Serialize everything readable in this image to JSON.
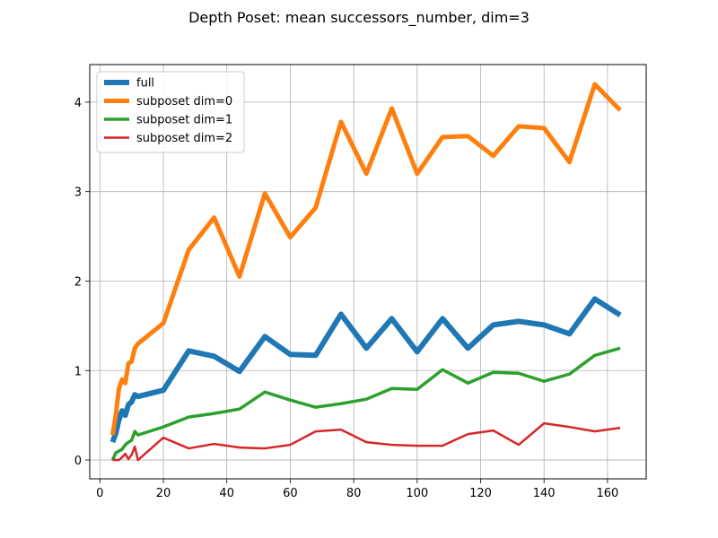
{
  "chart_data": {
    "type": "line",
    "title": "Depth Poset: mean successors_number, dim=3",
    "xlabel": "",
    "ylabel": "",
    "xlim": [
      -3.2,
      172.2
    ],
    "ylim": [
      -0.21,
      4.42
    ],
    "xticks": [
      0,
      20,
      40,
      60,
      80,
      100,
      120,
      140,
      160
    ],
    "yticks": [
      0,
      1,
      2,
      3,
      4
    ],
    "grid": true,
    "legend_position": "top-left",
    "series": [
      {
        "name": "full",
        "color": "#1f77b4",
        "linewidth": 6,
        "x": [
          4,
          5,
          6,
          7,
          8,
          9,
          10,
          11,
          12,
          20,
          28,
          36,
          44,
          52,
          60,
          68,
          76,
          84,
          92,
          100,
          108,
          116,
          124,
          132,
          140,
          148,
          156,
          164
        ],
        "y": [
          0.2,
          0.3,
          0.45,
          0.55,
          0.5,
          0.62,
          0.65,
          0.73,
          0.71,
          0.78,
          1.22,
          1.16,
          0.99,
          1.38,
          1.18,
          1.17,
          1.63,
          1.25,
          1.58,
          1.21,
          1.58,
          1.25,
          1.51,
          1.55,
          1.51,
          1.41,
          1.8,
          1.62
        ]
      },
      {
        "name": "subposet dim=0",
        "color": "#ff7f0e",
        "linewidth": 5,
        "x": [
          4,
          5,
          6,
          7,
          8,
          9,
          10,
          11,
          12,
          20,
          28,
          36,
          44,
          52,
          60,
          68,
          76,
          84,
          92,
          100,
          108,
          116,
          124,
          132,
          140,
          148,
          156,
          164
        ],
        "y": [
          0.28,
          0.5,
          0.8,
          0.9,
          0.86,
          1.08,
          1.1,
          1.25,
          1.3,
          1.53,
          2.35,
          2.71,
          2.05,
          2.98,
          2.49,
          2.82,
          3.78,
          3.2,
          3.93,
          3.2,
          3.61,
          3.62,
          3.4,
          3.73,
          3.71,
          3.33,
          4.2,
          3.91
        ]
      },
      {
        "name": "subposet dim=1",
        "color": "#2ca02c",
        "linewidth": 3.5,
        "x": [
          4,
          5,
          6,
          7,
          8,
          9,
          10,
          11,
          12,
          20,
          28,
          36,
          44,
          52,
          60,
          68,
          76,
          84,
          92,
          100,
          108,
          116,
          124,
          132,
          140,
          148,
          156,
          164
        ],
        "y": [
          0.0,
          0.08,
          0.1,
          0.12,
          0.17,
          0.2,
          0.22,
          0.32,
          0.28,
          0.37,
          0.48,
          0.52,
          0.57,
          0.76,
          0.67,
          0.59,
          0.63,
          0.68,
          0.8,
          0.79,
          1.01,
          0.86,
          0.98,
          0.97,
          0.88,
          0.96,
          1.17,
          1.25
        ]
      },
      {
        "name": "subposet dim=2",
        "color": "#d62728",
        "linewidth": 2.5,
        "x": [
          4,
          5,
          6,
          7,
          8,
          9,
          10,
          11,
          12,
          20,
          28,
          36,
          44,
          52,
          60,
          68,
          76,
          84,
          92,
          100,
          108,
          116,
          124,
          132,
          140,
          148,
          156,
          164
        ],
        "y": [
          0.0,
          0.0,
          0.0,
          0.03,
          0.07,
          0.01,
          0.06,
          0.15,
          0.0,
          0.25,
          0.13,
          0.18,
          0.14,
          0.13,
          0.17,
          0.32,
          0.34,
          0.2,
          0.17,
          0.16,
          0.16,
          0.29,
          0.33,
          0.17,
          0.41,
          0.37,
          0.32,
          0.36
        ]
      }
    ]
  }
}
